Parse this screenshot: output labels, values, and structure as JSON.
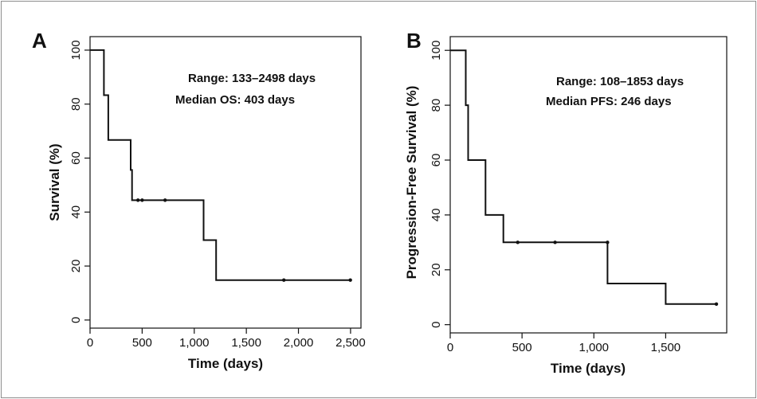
{
  "chart_data": [
    {
      "type": "line",
      "panel_label": "A",
      "xlabel": "Time (days)",
      "ylabel": "Survival (%)",
      "xlim": [
        0,
        2600
      ],
      "ylim": [
        -3,
        105
      ],
      "xticks": [
        0,
        500,
        1000,
        1500,
        2000,
        2500
      ],
      "xtick_labels": [
        "0",
        "500",
        "1,000",
        "1,500",
        "2,000",
        "2,500"
      ],
      "yticks": [
        0,
        20,
        40,
        60,
        80,
        100
      ],
      "ytick_labels": [
        "0",
        "20",
        "40",
        "60",
        "80",
        "100"
      ],
      "grid": false,
      "annotations": [
        "Range: 133–2498 days",
        "Median OS: 403 days"
      ],
      "series": [
        {
          "step_x": [
            0,
            133,
            133,
            175,
            175,
            390,
            390,
            403,
            403,
            1090,
            1090,
            1210,
            1210,
            2498
          ],
          "step_y": [
            100,
            100,
            83.3,
            83.3,
            66.7,
            66.7,
            55.6,
            55.6,
            44.4,
            44.4,
            29.6,
            29.6,
            14.8,
            14.8
          ],
          "censored_x": [
            460,
            500,
            720,
            1860,
            2498
          ],
          "censored_y": [
            44.4,
            44.4,
            44.4,
            14.8,
            14.8
          ]
        }
      ]
    },
    {
      "type": "line",
      "panel_label": "B",
      "xlabel": "Time (days)",
      "ylabel": "Progression-Free Survival (%)",
      "xlim": [
        0,
        1925
      ],
      "ylim": [
        -3,
        105
      ],
      "xticks": [
        0,
        500,
        1000,
        1500
      ],
      "xtick_labels": [
        "0",
        "500",
        "1,000",
        "1,500"
      ],
      "yticks": [
        0,
        20,
        40,
        60,
        80,
        100
      ],
      "ytick_labels": [
        "0",
        "20",
        "40",
        "60",
        "80",
        "100"
      ],
      "grid": false,
      "annotations": [
        "Range: 108–1853 days",
        "Median PFS: 246 days"
      ],
      "series": [
        {
          "step_x": [
            0,
            108,
            108,
            125,
            125,
            246,
            246,
            370,
            370,
            1095,
            1095,
            1500,
            1500,
            1853
          ],
          "step_y": [
            100,
            100,
            80,
            80,
            60,
            60,
            40,
            40,
            30,
            30,
            15,
            15,
            7.5,
            7.5
          ],
          "censored_x": [
            470,
            730,
            1095,
            1853
          ],
          "censored_y": [
            30,
            30,
            30,
            7.5
          ]
        }
      ]
    }
  ]
}
